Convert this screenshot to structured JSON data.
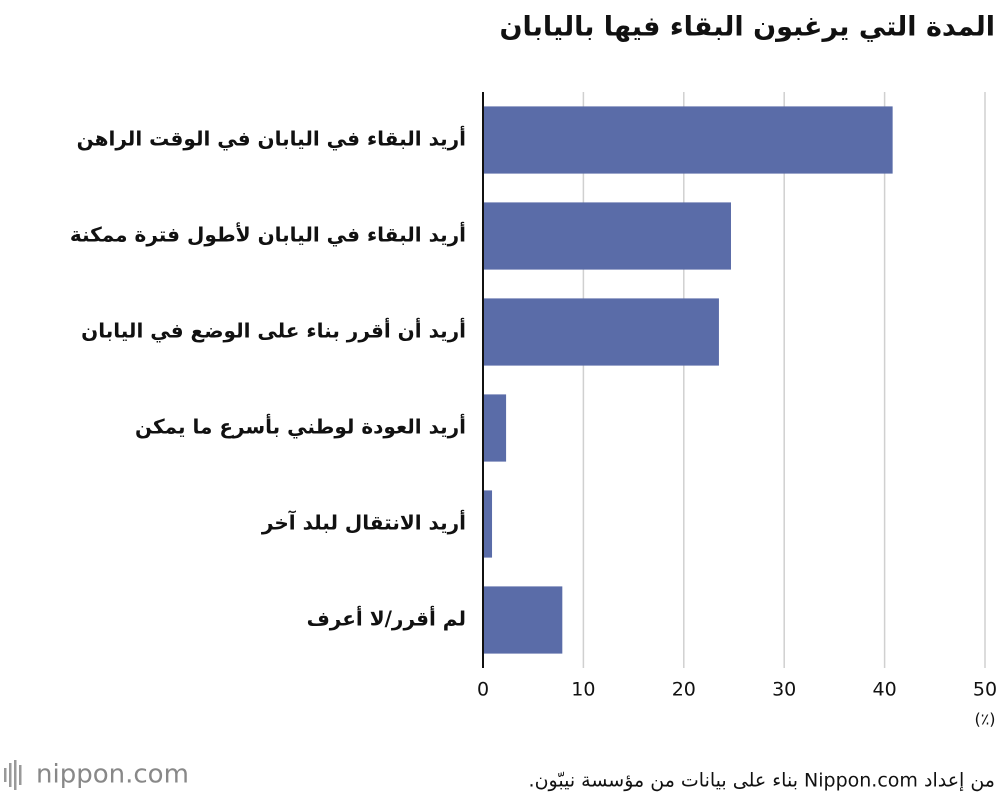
{
  "chart_data": {
    "type": "bar",
    "orientation": "horizontal",
    "title": "المدة التي يرغبون البقاء فيها باليابان",
    "categories": [
      "أريد البقاء في اليابان في الوقت الراهن",
      "أريد البقاء في اليابان لأطول فترة ممكنة",
      "أريد أن أقرر بناء على الوضع في اليابان",
      "أريد العودة لوطني بأسرع ما يمكن",
      "أريد الانتقال لبلد آخر",
      "لم أقرر/لا أعرف"
    ],
    "values": [
      40.8,
      24.7,
      23.5,
      2.3,
      0.9,
      7.9
    ],
    "color": "#5a6ca8",
    "xlim": [
      0,
      50
    ],
    "xticks": [
      0,
      10,
      20,
      30,
      40,
      50
    ],
    "x_label": "(٪)",
    "grid": true,
    "source": "من إعداد Nippon.com بناء على بيانات من مؤسسة نيبّون.",
    "logo": "nippon.com"
  }
}
